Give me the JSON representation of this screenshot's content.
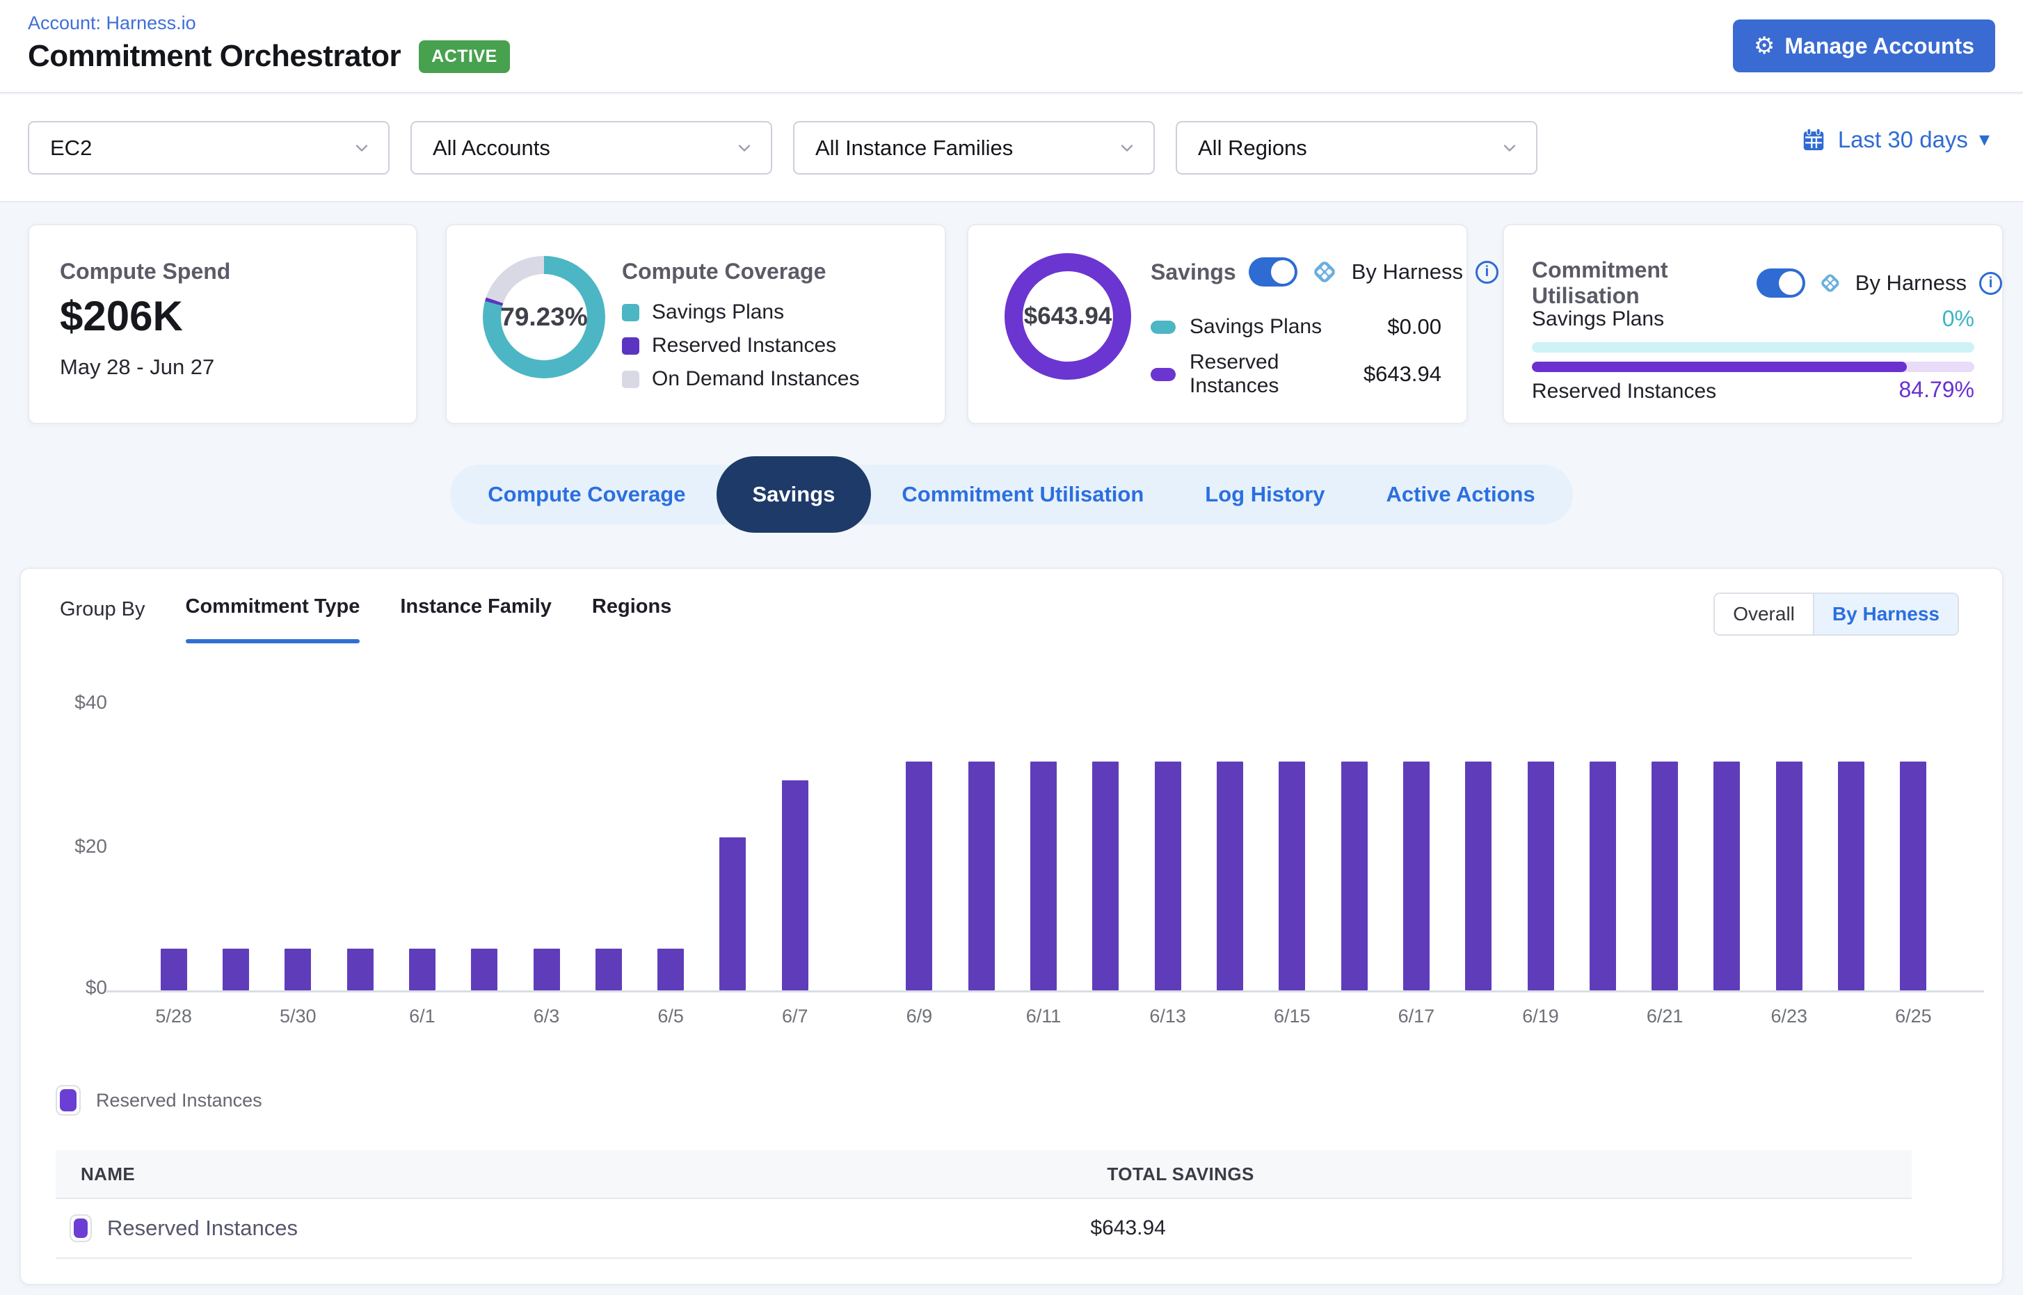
{
  "header": {
    "account_label": "Account: Harness.io",
    "title": "Commitment Orchestrator",
    "status_badge": "ACTIVE",
    "manage_accounts_label": "Manage Accounts"
  },
  "icons": {
    "gear": "⚙",
    "caret_down": "▾",
    "info": "i"
  },
  "filters": {
    "service": "EC2",
    "accounts": "All Accounts",
    "instance_families": "All Instance Families",
    "regions": "All Regions",
    "date_range": "Last 30 days"
  },
  "cards": {
    "compute_spend": {
      "title": "Compute Spend",
      "value": "$206K",
      "period": "May 28 - Jun 27"
    },
    "compute_coverage": {
      "title": "Compute Coverage",
      "percent": "79.23%",
      "segments": [
        {
          "label": "Savings Plans",
          "value": 79.23,
          "color": "#4cb6c4"
        },
        {
          "label": "Reserved Instances",
          "value": 1.0,
          "color": "#5b34c2"
        },
        {
          "label": "On Demand Instances",
          "value": 19.77,
          "color": "#d8d9e4"
        }
      ]
    },
    "savings": {
      "title": "Savings",
      "toggle_on": true,
      "toggle_label": "By Harness",
      "total": "$643.94",
      "rows": [
        {
          "label": "Savings Plans",
          "value": "$0.00",
          "color": "#4cb6c4"
        },
        {
          "label": "Reserved Instances",
          "value": "$643.94",
          "color": "#6a35d0"
        }
      ]
    },
    "commitment_utilisation": {
      "title": "Commitment Utilisation",
      "toggle_on": true,
      "toggle_label": "By Harness",
      "rows": [
        {
          "label": "Savings Plans",
          "value": "0%",
          "percent": 0,
          "fill": "#3ab5c6",
          "track": "#cff2f6"
        },
        {
          "label": "Reserved Instances",
          "value": "84.79%",
          "percent": 84.79,
          "fill": "#6a30d0",
          "track": "#e8dcf8"
        }
      ]
    }
  },
  "tabs": [
    {
      "label": "Compute Coverage",
      "active": false
    },
    {
      "label": "Savings",
      "active": true
    },
    {
      "label": "Commitment Utilisation",
      "active": false
    },
    {
      "label": "Log History",
      "active": false
    },
    {
      "label": "Active Actions",
      "active": false
    }
  ],
  "panel": {
    "group_by_label": "Group By",
    "group_tabs": [
      {
        "label": "Commitment Type",
        "active": true
      },
      {
        "label": "Instance Family",
        "active": false
      },
      {
        "label": "Regions",
        "active": false
      }
    ],
    "view_toggle": [
      {
        "label": "Overall",
        "active": false
      },
      {
        "label": "By Harness",
        "active": true
      }
    ],
    "legend": [
      {
        "label": "Reserved Instances",
        "color": "#6b3fd4"
      }
    ],
    "table": {
      "columns": [
        "NAME",
        "TOTAL SAVINGS"
      ],
      "rows": [
        {
          "name": "Reserved Instances",
          "total_savings": "$643.94",
          "color": "#6b3fd4"
        }
      ]
    }
  },
  "chart_data": {
    "type": "bar",
    "title": "",
    "xlabel": "",
    "ylabel": "",
    "ylim": [
      0,
      40
    ],
    "yticks": [
      "$0",
      "$20",
      "$40"
    ],
    "x_tick_every": 2,
    "grid": false,
    "legend_position": "bottom",
    "categories": [
      "5/28",
      "5/29",
      "5/30",
      "5/31",
      "6/1",
      "6/2",
      "6/3",
      "6/4",
      "6/5",
      "6/6",
      "6/7",
      "6/8",
      "6/9",
      "6/10",
      "6/11",
      "6/12",
      "6/13",
      "6/14",
      "6/15",
      "6/16",
      "6/17",
      "6/18",
      "6/19",
      "6/20",
      "6/21",
      "6/22",
      "6/23",
      "6/24",
      "6/25"
    ],
    "series": [
      {
        "name": "Reserved Instances",
        "color": "#5f3dba",
        "values": [
          5.8,
          5.8,
          5.8,
          5.8,
          5.8,
          5.8,
          5.8,
          5.8,
          5.8,
          21.3,
          29.2,
          0,
          31.8,
          31.8,
          31.8,
          31.8,
          31.8,
          31.8,
          31.8,
          31.8,
          31.8,
          31.8,
          31.8,
          31.8,
          31.8,
          31.8,
          31.8,
          31.8,
          31.8
        ]
      }
    ]
  },
  "colors": {
    "accent_blue": "#2e6bd3",
    "navy_active_tab": "#1e3a68",
    "badge_green": "#47a14e",
    "bar_purple": "#5f3dba",
    "teal": "#4cb6c4",
    "page_bg": "#f3f6fb"
  }
}
